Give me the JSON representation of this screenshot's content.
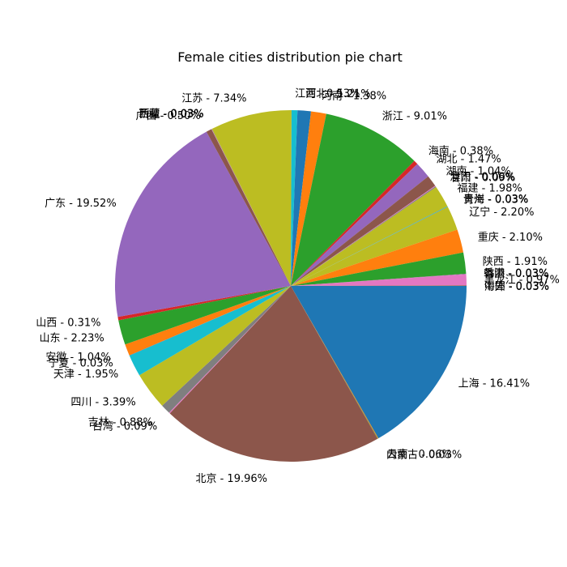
{
  "chart_data": {
    "type": "pie",
    "title": "Female cities distribution pie chart",
    "label_format": "{name} - {value}%",
    "start_angle_deg": 0,
    "direction": "clockwise",
    "slices": [
      {
        "name": "上海",
        "value": 16.41,
        "color": "#1f77b4",
        "display": "上海 - 16.41%"
      },
      {
        "name": "云南",
        "value": 0.06,
        "color": "#ff7f0e",
        "display": "云南 - 0.06%"
      },
      {
        "name": "内蒙古",
        "value": 0.03,
        "color": "#2ca02c",
        "display": "内蒙古 - 0.03%"
      },
      {
        "name": "北京",
        "value": 19.96,
        "color": "#8c564b",
        "display": "北京 - 19.96%"
      },
      {
        "name": "台湾",
        "value": 0.09,
        "color": "#e377c2",
        "display": "台湾 - 0.09%"
      },
      {
        "name": "吉林",
        "value": 0.88,
        "color": "#7f7f7f",
        "display": "吉林 - 0.88%"
      },
      {
        "name": "四川",
        "value": 3.39,
        "color": "#bcbd22",
        "display": "四川 - 3.39%"
      },
      {
        "name": "天津",
        "value": 1.95,
        "color": "#17becf",
        "display": "天津 - 1.95%"
      },
      {
        "name": "宁夏",
        "value": 0.03,
        "color": "#1f77b4",
        "display": "宁夏 - 0.03%"
      },
      {
        "name": "安徽",
        "value": 1.04,
        "color": "#ff7f0e",
        "display": "安徽 - 1.04%"
      },
      {
        "name": "山东",
        "value": 2.23,
        "color": "#2ca02c",
        "display": "山东 - 2.23%"
      },
      {
        "name": "山西",
        "value": 0.31,
        "color": "#d62728",
        "display": "山西 - 0.31%"
      },
      {
        "name": "广东",
        "value": 19.52,
        "color": "#9467bd",
        "display": "广东 - 19.52%"
      },
      {
        "name": "广西",
        "value": 0.5,
        "color": "#8c564b",
        "display": "广西 - 0.50%"
      },
      {
        "name": "新疆",
        "value": 0.03,
        "color": "#e377c2",
        "display": "新疆 - 0.03%"
      },
      {
        "name": "西藏",
        "value": 0.03,
        "color": "#7f7f7f",
        "display": "西藏 - 0.03%"
      },
      {
        "name": "江苏",
        "value": 7.34,
        "color": "#bcbd22",
        "display": "江苏 - 7.34%"
      },
      {
        "name": "江西",
        "value": 0.53,
        "color": "#17becf",
        "display": "江西 - 0.53%"
      },
      {
        "name": "河北",
        "value": 1.21,
        "color": "#1f77b4",
        "display": "河北 - 1.21%"
      },
      {
        "name": "河南",
        "value": 1.38,
        "color": "#ff7f0e",
        "display": "河南 - 1.38%"
      },
      {
        "name": "浙江",
        "value": 9.01,
        "color": "#2ca02c",
        "display": "浙江 - 9.01%"
      },
      {
        "name": "海南",
        "value": 0.38,
        "color": "#d62728",
        "display": "海南 - 0.38%"
      },
      {
        "name": "湖北",
        "value": 1.47,
        "color": "#9467bd",
        "display": "湖北 - 1.47%"
      },
      {
        "name": "湖南",
        "value": 1.04,
        "color": "#8c564b",
        "display": "湖南 - 1.04%"
      },
      {
        "name": "澳门",
        "value": 0.06,
        "color": "#e377c2",
        "display": "澳门 - 0.06%"
      },
      {
        "name": "甘肃",
        "value": 0.09,
        "color": "#7f7f7f",
        "display": "甘肃 - 0.09%"
      },
      {
        "name": "福建",
        "value": 1.98,
        "color": "#bcbd22",
        "display": "福建 - 1.98%"
      },
      {
        "name": "贵州",
        "value": 0.03,
        "color": "#17becf",
        "display": "贵州 - 0.03%"
      },
      {
        "name": "青海",
        "value": 0.03,
        "color": "#1f77b4",
        "display": "青海 - 0.03%"
      },
      {
        "name": "辽宁",
        "value": 2.2,
        "color": "#bcbd22",
        "display": "辽宁 - 2.20%"
      },
      {
        "name": "重庆",
        "value": 2.1,
        "color": "#ff7f0e",
        "display": "重庆 - 2.10%"
      },
      {
        "name": "陕西",
        "value": 1.91,
        "color": "#2ca02c",
        "display": "陕西 - 1.91%"
      },
      {
        "name": "香港",
        "value": 0.03,
        "color": "#8c564b",
        "display": "香港 - 0.03%"
      },
      {
        "name": "韩国",
        "value": 0.03,
        "color": "#9467bd",
        "display": "韩国 - 0.03%"
      },
      {
        "name": "黑龙江",
        "value": 0.97,
        "color": "#e377c2",
        "display": "黑龙江 - 0.97%"
      },
      {
        "name": "中国",
        "value": 0.03,
        "color": "#7f7f7f",
        "display": "中国 - 0.03%"
      },
      {
        "name": "海外",
        "value": 0.03,
        "color": "#d62728",
        "display": "海外 - 0.03%"
      }
    ]
  }
}
